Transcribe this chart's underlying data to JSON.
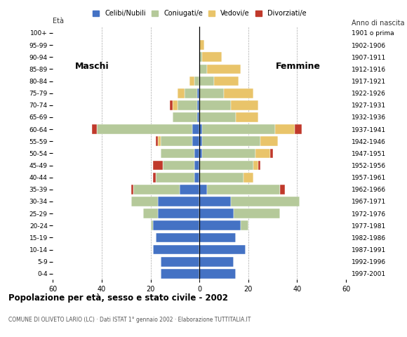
{
  "age_groups": [
    "0-4",
    "5-9",
    "10-14",
    "15-19",
    "20-24",
    "25-29",
    "30-34",
    "35-39",
    "40-44",
    "45-49",
    "50-54",
    "55-59",
    "60-64",
    "65-69",
    "70-74",
    "75-79",
    "80-84",
    "85-89",
    "90-94",
    "95-99",
    "100+"
  ],
  "birth_years": [
    "1997-2001",
    "1992-1996",
    "1987-1991",
    "1982-1986",
    "1977-1981",
    "1972-1976",
    "1967-1971",
    "1962-1966",
    "1957-1961",
    "1952-1956",
    "1947-1951",
    "1942-1946",
    "1937-1941",
    "1932-1936",
    "1927-1931",
    "1922-1926",
    "1917-1921",
    "1912-1916",
    "1907-1911",
    "1902-1906",
    "1901 o prima"
  ],
  "colors": {
    "celibe": "#4472c4",
    "coniugato": "#b5c99a",
    "vedovo": "#e9c46a",
    "divorziato": "#c0392b"
  },
  "male": {
    "celibe": [
      16,
      16,
      19,
      18,
      19,
      17,
      17,
      8,
      2,
      2,
      2,
      3,
      3,
      1,
      1,
      1,
      0,
      0,
      0,
      0,
      0
    ],
    "coniugato": [
      0,
      0,
      0,
      0,
      1,
      6,
      11,
      19,
      16,
      13,
      14,
      13,
      39,
      10,
      8,
      5,
      2,
      0,
      0,
      0,
      0
    ],
    "vedovo": [
      0,
      0,
      0,
      0,
      0,
      0,
      0,
      0,
      0,
      0,
      0,
      1,
      0,
      0,
      2,
      3,
      2,
      0,
      0,
      0,
      0
    ],
    "divorziato": [
      0,
      0,
      0,
      0,
      0,
      0,
      0,
      1,
      1,
      4,
      0,
      1,
      2,
      0,
      1,
      0,
      0,
      0,
      0,
      0,
      0
    ]
  },
  "female": {
    "celibe": [
      15,
      14,
      19,
      15,
      17,
      14,
      13,
      3,
      0,
      0,
      1,
      1,
      1,
      0,
      0,
      0,
      0,
      0,
      0,
      0,
      0
    ],
    "coniugato": [
      0,
      0,
      0,
      0,
      3,
      19,
      28,
      30,
      18,
      22,
      22,
      24,
      30,
      15,
      13,
      10,
      6,
      3,
      1,
      0,
      0
    ],
    "vedovo": [
      0,
      0,
      0,
      0,
      0,
      0,
      0,
      0,
      4,
      2,
      6,
      7,
      8,
      9,
      11,
      12,
      10,
      14,
      8,
      2,
      0
    ],
    "divorziato": [
      0,
      0,
      0,
      0,
      0,
      0,
      0,
      2,
      0,
      1,
      1,
      0,
      3,
      0,
      0,
      0,
      0,
      0,
      0,
      0,
      0
    ]
  },
  "title": "Popolazione per età, sesso e stato civile - 2002",
  "subtitle": "COMUNE DI OLIVETO LARIO (LC) · Dati ISTAT 1° gennaio 2002 · Elaborazione TUTTITALIA.IT",
  "xlabel_left": "Maschi",
  "xlabel_right": "Femmine",
  "ylabel_left": "Età",
  "ylabel_right": "Anno di nascita",
  "xlim": 60,
  "legend_labels": [
    "Celibi/Nubili",
    "Coniugati/e",
    "Vedovi/e",
    "Divorziati/e"
  ]
}
